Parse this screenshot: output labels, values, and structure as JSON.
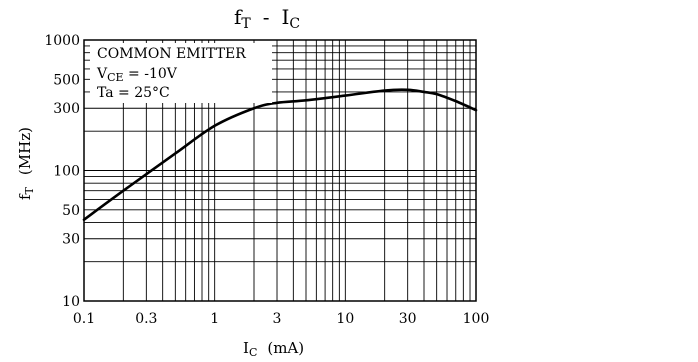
{
  "chart_data": {
    "type": "line",
    "title": "fT - IC",
    "title_main": "f",
    "title_main_sub": "T",
    "title_dash": "-",
    "title_right": "I",
    "title_right_sub": "C",
    "xlabel": "IC (mA)",
    "xlabel_main": "I",
    "xlabel_sub": "C",
    "xlabel_unit": "(mA)",
    "ylabel": "fT (MHz)",
    "ylabel_main": "f",
    "ylabel_sub": "T",
    "ylabel_unit": "(MHz)",
    "x_scale": "log",
    "y_scale": "log",
    "xlim": [
      0.1,
      100
    ],
    "ylim": [
      10,
      1000
    ],
    "grid": true,
    "x_ticks": [
      {
        "value": 0.1,
        "label": "0.1"
      },
      {
        "value": 0.3,
        "label": "0.3"
      },
      {
        "value": 1,
        "label": "1"
      },
      {
        "value": 3,
        "label": "3"
      },
      {
        "value": 10,
        "label": "10"
      },
      {
        "value": 30,
        "label": "30"
      },
      {
        "value": 100,
        "label": "100"
      }
    ],
    "y_ticks": [
      {
        "value": 10,
        "label": "10"
      },
      {
        "value": 30,
        "label": "30"
      },
      {
        "value": 50,
        "label": "50"
      },
      {
        "value": 100,
        "label": "100"
      },
      {
        "value": 300,
        "label": "300"
      },
      {
        "value": 500,
        "label": "500"
      },
      {
        "value": 1000,
        "label": "1000"
      }
    ],
    "annotations": [
      "COMMON EMITTER",
      "VCE = -10V",
      "Ta = 25°C"
    ],
    "annotation_lines": {
      "line1": "COMMON EMITTER",
      "line2_main": "V",
      "line2_sub": "CE",
      "line2_rest": " = -10V",
      "line3": "Ta = 25°C"
    },
    "series": [
      {
        "x": [
          0.1,
          0.2,
          0.5,
          1,
          2,
          3,
          5,
          10,
          20,
          30,
          40,
          50,
          70,
          100
        ],
        "y": [
          42,
          70,
          135,
          220,
          300,
          330,
          345,
          375,
          410,
          415,
          400,
          385,
          340,
          290
        ]
      }
    ]
  }
}
